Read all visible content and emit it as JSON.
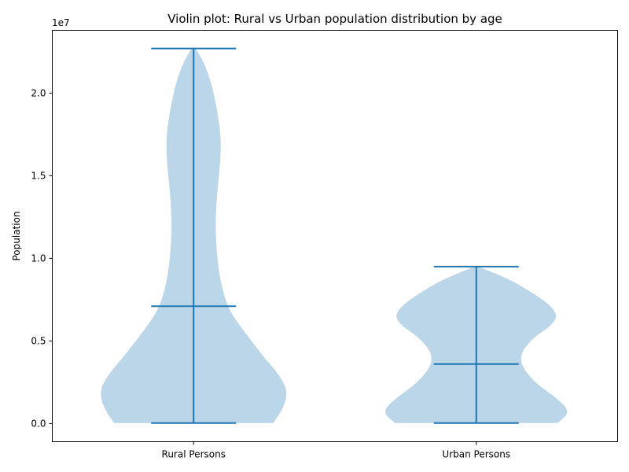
{
  "chart_data": {
    "type": "violin",
    "title": "Violin plot: Rural vs Urban population distribution by age",
    "xlabel": "",
    "ylabel": "Population",
    "y_offset_label": "1e7",
    "y_ticks": [
      "0.0",
      "0.5",
      "1.0",
      "1.5",
      "2.0"
    ],
    "y_tick_values": [
      0.0,
      0.5,
      1.0,
      1.5,
      2.0
    ],
    "ylim": [
      -0.11,
      2.38
    ],
    "y_units": "population ×1e7",
    "categories": [
      "Rural Persons",
      "Urban Persons"
    ],
    "grid": false,
    "fill_color": "#bcd6e9",
    "line_color": "#1f77b4",
    "series": [
      {
        "category": "Rural Persons",
        "min": 0.003,
        "median": 0.71,
        "max": 2.27,
        "density_profile": [
          [
            0.003,
            0.44
          ],
          [
            0.1,
            0.5
          ],
          [
            0.2,
            0.52
          ],
          [
            0.3,
            0.47
          ],
          [
            0.4,
            0.39
          ],
          [
            0.5,
            0.32
          ],
          [
            0.6,
            0.25
          ],
          [
            0.7,
            0.19
          ],
          [
            0.85,
            0.15
          ],
          [
            1.0,
            0.13
          ],
          [
            1.2,
            0.12
          ],
          [
            1.4,
            0.13
          ],
          [
            1.6,
            0.15
          ],
          [
            1.75,
            0.15
          ],
          [
            1.9,
            0.13
          ],
          [
            2.05,
            0.1
          ],
          [
            2.15,
            0.07
          ],
          [
            2.22,
            0.04
          ],
          [
            2.27,
            0.01
          ]
        ]
      },
      {
        "category": "Urban Persons",
        "min": 0.003,
        "median": 0.36,
        "max": 0.95,
        "density_profile": [
          [
            0.003,
            0.45
          ],
          [
            0.07,
            0.52
          ],
          [
            0.15,
            0.45
          ],
          [
            0.25,
            0.32
          ],
          [
            0.38,
            0.23
          ],
          [
            0.5,
            0.29
          ],
          [
            0.62,
            0.45
          ],
          [
            0.7,
            0.43
          ],
          [
            0.8,
            0.3
          ],
          [
            0.88,
            0.17
          ],
          [
            0.95,
            0.01
          ]
        ]
      }
    ]
  }
}
